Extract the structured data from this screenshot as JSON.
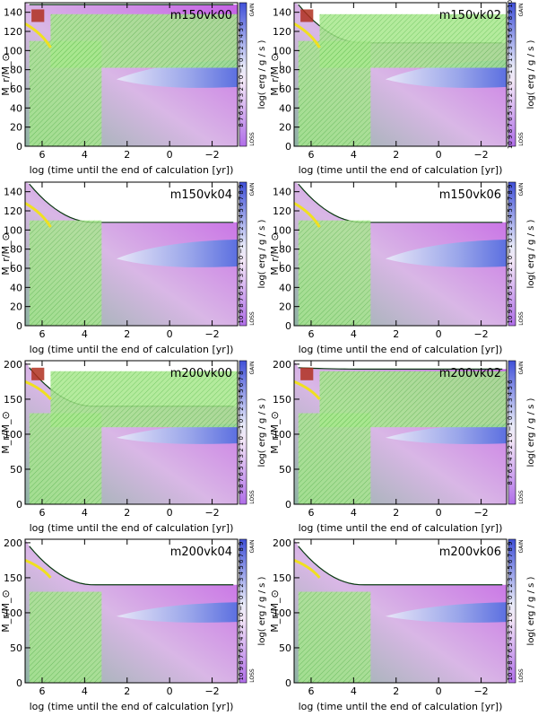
{
  "chart_data": [
    {
      "type": "heatmap",
      "title": "m150vk00",
      "xlabel": "log (time until the end of calculation [yr])",
      "ylabel": "M_r/M_⊙",
      "xticks": [
        "6",
        "4",
        "2",
        "0",
        "−2"
      ],
      "yticks": [
        "0",
        "20",
        "40",
        "60",
        "80",
        "100",
        "120",
        "140"
      ],
      "ylim": [
        0,
        150
      ],
      "cb_label": "log( erg / g / s )",
      "cb_gain": "GAIN",
      "cb_loss": "LOSS",
      "cb_ticks": "8 7 6 5 4 3 2 1 0 −1 0 1 2 3 4 5 6"
    },
    {
      "type": "heatmap",
      "title": "m150vk02",
      "xlabel": "log (time until the end of calculation [yr])",
      "ylabel": "M_r/M_⊙",
      "xticks": [
        "6",
        "4",
        "2",
        "0",
        "−2"
      ],
      "yticks": [
        "0",
        "20",
        "40",
        "60",
        "80",
        "100",
        "120",
        "140"
      ],
      "ylim": [
        0,
        150
      ],
      "cb_label": "log( erg / g / s )",
      "cb_gain": "GAIN",
      "cb_loss": "LOSS",
      "cb_ticks": "10 9 8 7 6 5 4 3 2 1 0 −1 0 1 2 3 4 5 6 7 8 9 10"
    },
    {
      "type": "heatmap",
      "title": "m150vk04",
      "xlabel": "log (time until the end of calculation [yr])",
      "ylabel": "M_r/M_⊙",
      "xticks": [
        "6",
        "4",
        "2",
        "0",
        "−2"
      ],
      "yticks": [
        "0",
        "20",
        "40",
        "60",
        "80",
        "100",
        "120",
        "140"
      ],
      "ylim": [
        0,
        150
      ],
      "cb_label": "log( erg / g / s )",
      "cb_gain": "GAIN",
      "cb_loss": "LOSS",
      "cb_ticks": "10 9 8 7 6 5 4 3 2 1 0 −1 0 1 2 3 4 5 6 7 8 9"
    },
    {
      "type": "heatmap",
      "title": "m150vk06",
      "xlabel": "log (time until the end of calculation [yr])",
      "ylabel": "M_r/M_⊙",
      "xticks": [
        "6",
        "4",
        "2",
        "0",
        "−2"
      ],
      "yticks": [
        "0",
        "20",
        "40",
        "60",
        "80",
        "100",
        "120",
        "140"
      ],
      "ylim": [
        0,
        150
      ],
      "cb_label": "log( erg / g / s )",
      "cb_gain": "GAIN",
      "cb_loss": "LOSS",
      "cb_ticks": "10 9 8 7 6 5 4 3 2 1 0 −1 0 1 2 3 4 5 6 7 8 9"
    },
    {
      "type": "heatmap",
      "title": "m200vk00",
      "xlabel": "log (time until the end of calculation [yr])",
      "ylabel": "M_r/M_⊙",
      "xticks": [
        "6",
        "4",
        "2",
        "0",
        "−2"
      ],
      "yticks": [
        "0",
        "50",
        "100",
        "150",
        "200"
      ],
      "ylim": [
        0,
        205
      ],
      "cb_label": "log( erg / g / s )",
      "cb_gain": "GAIN",
      "cb_loss": "LOSS",
      "cb_ticks": "9 8 7 6 5 4 3 2 1 0 −1 0 1 2 3 4 5 6 7 8"
    },
    {
      "type": "heatmap",
      "title": "m200vk02",
      "xlabel": "log (time until the end of calculation [yr])",
      "ylabel": "M_r/M_⊙",
      "xticks": [
        "6",
        "4",
        "2",
        "0",
        "−2"
      ],
      "yticks": [
        "0",
        "50",
        "100",
        "150",
        "200"
      ],
      "ylim": [
        0,
        205
      ],
      "cb_label": "log( erg / g / s )",
      "cb_gain": "GAIN",
      "cb_loss": "LOSS",
      "cb_ticks": "8 7 6 5 4 3 2 1 0 −1 0 1 2 3 4 5 6"
    },
    {
      "type": "heatmap",
      "title": "m200vk04",
      "xlabel": "log (time until the end of calculation [yr])",
      "ylabel": "M_r/M_⊙",
      "xticks": [
        "6",
        "4",
        "2",
        "0",
        "−2"
      ],
      "yticks": [
        "0",
        "50",
        "100",
        "150",
        "200"
      ],
      "ylim": [
        0,
        205
      ],
      "cb_label": "log( erg / g / s )",
      "cb_gain": "GAIN",
      "cb_loss": "LOSS",
      "cb_ticks": "10 9 8 7 6 5 4 3 2 1 0 −1 0 1 2 3 4 5 6 7 8 9"
    },
    {
      "type": "heatmap",
      "title": "m200vk06",
      "xlabel": "log (time until the end of calculation [yr])",
      "ylabel": "M_r/M_⊙",
      "xticks": [
        "6",
        "4",
        "2",
        "0",
        "−2"
      ],
      "yticks": [
        "0",
        "50",
        "100",
        "150",
        "200"
      ],
      "ylim": [
        0,
        205
      ],
      "cb_label": "log( erg / g / s )",
      "cb_gain": "GAIN",
      "cb_loss": "LOSS",
      "cb_ticks": "10 9 8 7 6 5 4 3 2 1 0 −1 0 1 2 3 4 5 6 7 8 9"
    }
  ]
}
